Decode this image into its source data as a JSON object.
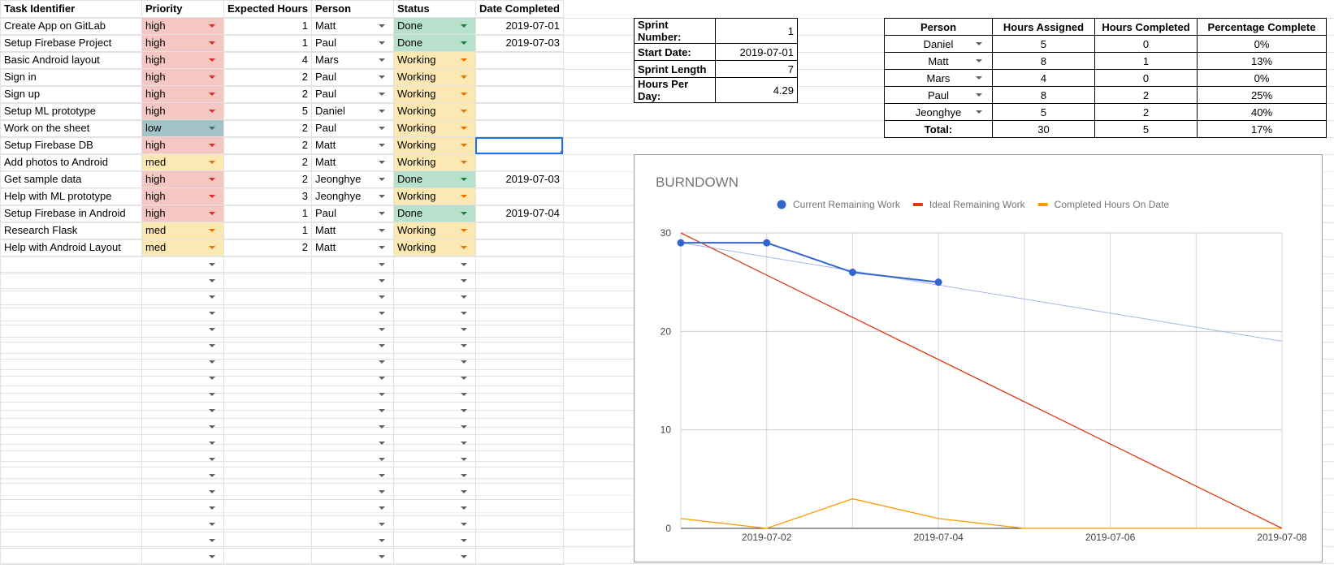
{
  "tasks": {
    "headers": [
      "Task Identifier",
      "Priority",
      "Expected Hours",
      "Person",
      "Status",
      "Date Completed"
    ],
    "rows": [
      {
        "task": "Create App on GitLab",
        "priority": "high",
        "hours": "1",
        "person": "Matt",
        "status": "Done",
        "date": "2019-07-01"
      },
      {
        "task": "Setup Firebase Project",
        "priority": "high",
        "hours": "1",
        "person": "Paul",
        "status": "Done",
        "date": "2019-07-03"
      },
      {
        "task": "Basic Android layout",
        "priority": "high",
        "hours": "4",
        "person": "Mars",
        "status": "Working",
        "date": ""
      },
      {
        "task": "Sign in",
        "priority": "high",
        "hours": "2",
        "person": "Paul",
        "status": "Working",
        "date": ""
      },
      {
        "task": "Sign up",
        "priority": "high",
        "hours": "2",
        "person": "Paul",
        "status": "Working",
        "date": ""
      },
      {
        "task": "Setup ML prototype",
        "priority": "high",
        "hours": "5",
        "person": "Daniel",
        "status": "Working",
        "date": ""
      },
      {
        "task": "Work on the sheet",
        "priority": "low",
        "hours": "2",
        "person": "Paul",
        "status": "Working",
        "date": ""
      },
      {
        "task": "Setup Firebase DB",
        "priority": "high",
        "hours": "2",
        "person": "Matt",
        "status": "Working",
        "date": ""
      },
      {
        "task": "Add photos to Android",
        "priority": "med",
        "hours": "2",
        "person": "Matt",
        "status": "Working",
        "date": ""
      },
      {
        "task": "Get sample data",
        "priority": "high",
        "hours": "2",
        "person": "Jeonghye",
        "status": "Done",
        "date": "2019-07-03"
      },
      {
        "task": "Help with ML prototype",
        "priority": "high",
        "hours": "3",
        "person": "Jeonghye",
        "status": "Working",
        "date": ""
      },
      {
        "task": "Setup Firebase in Android",
        "priority": "high",
        "hours": "1",
        "person": "Paul",
        "status": "Done",
        "date": "2019-07-04"
      },
      {
        "task": "Research Flask",
        "priority": "med",
        "hours": "1",
        "person": "Matt",
        "status": "Working",
        "date": ""
      },
      {
        "task": "Help with Android Layout",
        "priority": "med",
        "hours": "2",
        "person": "Matt",
        "status": "Working",
        "date": ""
      }
    ],
    "empty_rows": 19
  },
  "sprint": {
    "rows": [
      {
        "label": "Sprint Number:",
        "value": "1"
      },
      {
        "label": "Start Date:",
        "value": "2019-07-01"
      },
      {
        "label": "Sprint Length",
        "value": "7"
      },
      {
        "label": "Hours Per Day:",
        "value": "4.29"
      }
    ]
  },
  "people": {
    "headers": [
      "Person",
      "Hours Assigned",
      "Hours Completed",
      "Percentage Complete"
    ],
    "rows": [
      {
        "person": "Daniel",
        "assigned": "5",
        "completed": "0",
        "pct": "0%"
      },
      {
        "person": "Matt",
        "assigned": "8",
        "completed": "1",
        "pct": "13%"
      },
      {
        "person": "Mars",
        "assigned": "4",
        "completed": "0",
        "pct": "0%"
      },
      {
        "person": "Paul",
        "assigned": "8",
        "completed": "2",
        "pct": "25%"
      },
      {
        "person": "Jeonghye",
        "assigned": "5",
        "completed": "2",
        "pct": "40%"
      }
    ],
    "total": {
      "label": "Total:",
      "assigned": "30",
      "completed": "5",
      "pct": "17%"
    }
  },
  "colors": {
    "priority_high": "#f4c7c3",
    "priority_med": "#fce8b2",
    "priority_low": "#a2c4c9",
    "status_done": "#b7e1cd",
    "status_working": "#fce8b2",
    "selection": "#1a73e8"
  },
  "chart_data": {
    "type": "line",
    "title": "BURNDOWN",
    "legend_position": "top",
    "grid": true,
    "ylim": [
      0,
      30
    ],
    "yticks": [
      0,
      10,
      20,
      30
    ],
    "xlim": [
      "2019-07-01",
      "2019-07-08"
    ],
    "xticks": [
      "2019-07-02",
      "2019-07-04",
      "2019-07-06",
      "2019-07-08"
    ],
    "series": [
      {
        "name": "Current Remaining Work",
        "color": "#3366cc",
        "markers": true,
        "x": [
          "2019-07-01",
          "2019-07-02",
          "2019-07-03",
          "2019-07-04"
        ],
        "y": [
          29,
          29,
          26,
          25
        ]
      },
      {
        "name": "Ideal Remaining Work",
        "color": "#dc3912",
        "x": [
          "2019-07-01",
          "2019-07-08"
        ],
        "y": [
          30,
          0
        ]
      },
      {
        "name": "Completed Hours On Date",
        "color": "#ff9900",
        "x": [
          "2019-07-01",
          "2019-07-02",
          "2019-07-03",
          "2019-07-04",
          "2019-07-05",
          "2019-07-06",
          "2019-07-07",
          "2019-07-08"
        ],
        "y": [
          1,
          0,
          3,
          1,
          0,
          0,
          0,
          0
        ]
      }
    ],
    "trendline": {
      "series": "Current Remaining Work",
      "color": "#a4b8ec",
      "x": [
        "2019-07-01",
        "2019-07-08"
      ],
      "y": [
        29,
        19
      ]
    }
  }
}
